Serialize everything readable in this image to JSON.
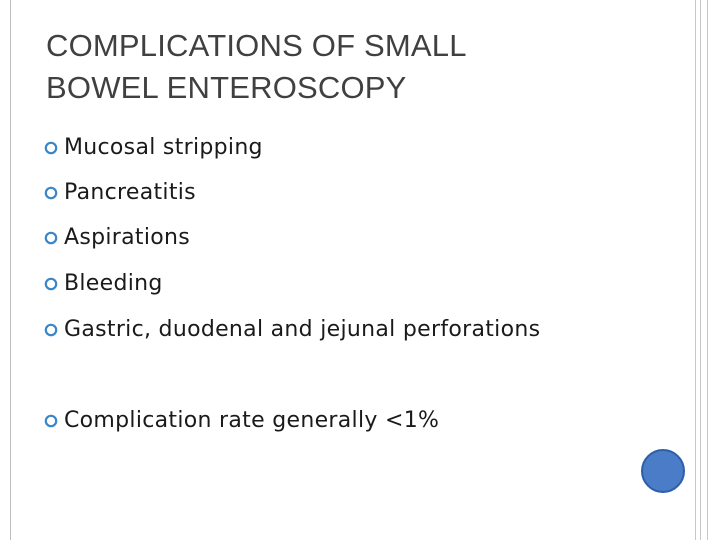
{
  "slide": {
    "title_lines": [
      "COMPLICATIONS OF SMALL",
      "BOWEL ENTEROSCOPY"
    ],
    "bullets": [
      "Mucosal stripping",
      "Pancreatitis",
      "Aspirations",
      "Bleeding",
      "Gastric, duodenal and jejunal perforations",
      "Complication rate generally <1%"
    ],
    "bullet_icon": "ring-bullet-icon",
    "colors": {
      "title": "#404040",
      "text": "#1a1a1a",
      "bullet": "#3a86c8",
      "accent_circle": "#4a7cc8"
    }
  }
}
